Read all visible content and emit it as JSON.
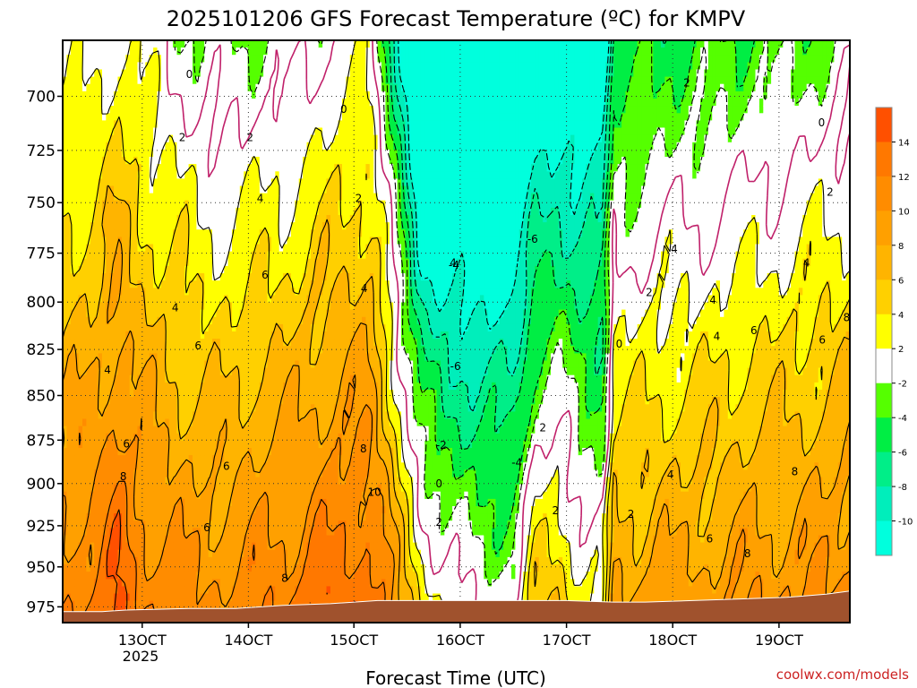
{
  "chart_data": {
    "type": "heatmap",
    "title": "2025101206 GFS Forecast Temperature (ºC) for KMPV",
    "xlabel": "Forecast Time (UTC)",
    "ylabel": "",
    "x_ticks": [
      "13OCT",
      "14OCT",
      "15OCT",
      "16OCT",
      "17OCT",
      "18OCT",
      "19OCT"
    ],
    "x_sublabel": "2025",
    "y_ticks": [
      700,
      725,
      750,
      775,
      800,
      825,
      850,
      875,
      900,
      925,
      950,
      975
    ],
    "y_range_hpa": [
      675,
      985
    ],
    "y_axis": "pressure (hPa), inverted, log scale",
    "grid": true,
    "colorbar": {
      "labels": [
        14,
        12,
        10,
        8,
        6,
        4,
        2,
        -2,
        -4,
        -6,
        -8,
        -10
      ],
      "bands": [
        {
          "range": [
            14,
            16
          ],
          "color": "#ff5000"
        },
        {
          "range": [
            12,
            14
          ],
          "color": "#ff7800"
        },
        {
          "range": [
            10,
            12
          ],
          "color": "#ff8c00"
        },
        {
          "range": [
            8,
            10
          ],
          "color": "#ffa000"
        },
        {
          "range": [
            6,
            8
          ],
          "color": "#ffb400"
        },
        {
          "range": [
            4,
            6
          ],
          "color": "#ffd000"
        },
        {
          "range": [
            2,
            4
          ],
          "color": "#ffff00"
        },
        {
          "range": [
            -2,
            2
          ],
          "color": "#ffffff"
        },
        {
          "range": [
            -4,
            -2
          ],
          "color": "#55ff00"
        },
        {
          "range": [
            -6,
            -4
          ],
          "color": "#00ee44"
        },
        {
          "range": [
            -8,
            -6
          ],
          "color": "#00ee88"
        },
        {
          "range": [
            -10,
            -8
          ],
          "color": "#00eebb"
        },
        {
          "range": [
            -12,
            -10
          ],
          "color": "#00ffdd"
        }
      ]
    },
    "ground_color": "#a0522d",
    "contour_labels": [
      {
        "text": "0",
        "t": 0.161,
        "p": 690
      },
      {
        "text": "0",
        "t": 0.357,
        "p": 706
      },
      {
        "text": "0",
        "t": 0.707,
        "p": 822
      },
      {
        "text": "0",
        "t": 0.964,
        "p": 712
      },
      {
        "text": "0",
        "t": 0.478,
        "p": 900
      },
      {
        "text": "2",
        "t": 0.152,
        "p": 719
      },
      {
        "text": "2",
        "t": 0.238,
        "p": 719
      },
      {
        "text": "2",
        "t": 0.376,
        "p": 748
      },
      {
        "text": "2",
        "t": 0.478,
        "p": 923
      },
      {
        "text": "2",
        "t": 0.626,
        "p": 916
      },
      {
        "text": "2",
        "t": 0.61,
        "p": 868
      },
      {
        "text": "2",
        "t": 0.722,
        "p": 918
      },
      {
        "text": "2",
        "t": 0.745,
        "p": 795
      },
      {
        "text": "2",
        "t": 0.793,
        "p": 694
      },
      {
        "text": "2",
        "t": 0.975,
        "p": 745
      },
      {
        "text": "4",
        "t": 0.251,
        "p": 748
      },
      {
        "text": "4",
        "t": 0.383,
        "p": 793
      },
      {
        "text": "4",
        "t": 0.143,
        "p": 803
      },
      {
        "text": "4",
        "t": 0.057,
        "p": 836
      },
      {
        "text": "4",
        "t": 0.496,
        "p": 780
      },
      {
        "text": "4",
        "t": 0.777,
        "p": 773
      },
      {
        "text": "4",
        "t": 0.826,
        "p": 799
      },
      {
        "text": "4",
        "t": 0.831,
        "p": 818
      },
      {
        "text": "4",
        "t": 0.945,
        "p": 780
      },
      {
        "text": "4",
        "t": 0.772,
        "p": 895
      },
      {
        "text": "6",
        "t": 0.257,
        "p": 786
      },
      {
        "text": "6",
        "t": 0.172,
        "p": 823
      },
      {
        "text": "6",
        "t": 0.081,
        "p": 877
      },
      {
        "text": "6",
        "t": 0.208,
        "p": 890
      },
      {
        "text": "6",
        "t": 0.183,
        "p": 926
      },
      {
        "text": "6",
        "t": 0.878,
        "p": 815
      },
      {
        "text": "6",
        "t": 0.965,
        "p": 820
      },
      {
        "text": "6",
        "t": 0.822,
        "p": 933
      },
      {
        "text": "8",
        "t": 0.077,
        "p": 896
      },
      {
        "text": "8",
        "t": 0.282,
        "p": 957
      },
      {
        "text": "8",
        "t": 0.382,
        "p": 880
      },
      {
        "text": "8",
        "t": 0.996,
        "p": 808
      },
      {
        "text": "8",
        "t": 0.93,
        "p": 893
      },
      {
        "text": "8",
        "t": 0.87,
        "p": 942
      },
      {
        "text": "10",
        "t": 0.396,
        "p": 905
      },
      {
        "text": "-2",
        "t": 0.481,
        "p": 878
      },
      {
        "text": "-4",
        "t": 0.577,
        "p": 888
      },
      {
        "text": "-4",
        "t": 0.497,
        "p": 781
      },
      {
        "text": "-6",
        "t": 0.597,
        "p": 768
      },
      {
        "text": "-6",
        "t": 0.499,
        "p": 834
      }
    ]
  },
  "credit": "coolwx.com/models"
}
